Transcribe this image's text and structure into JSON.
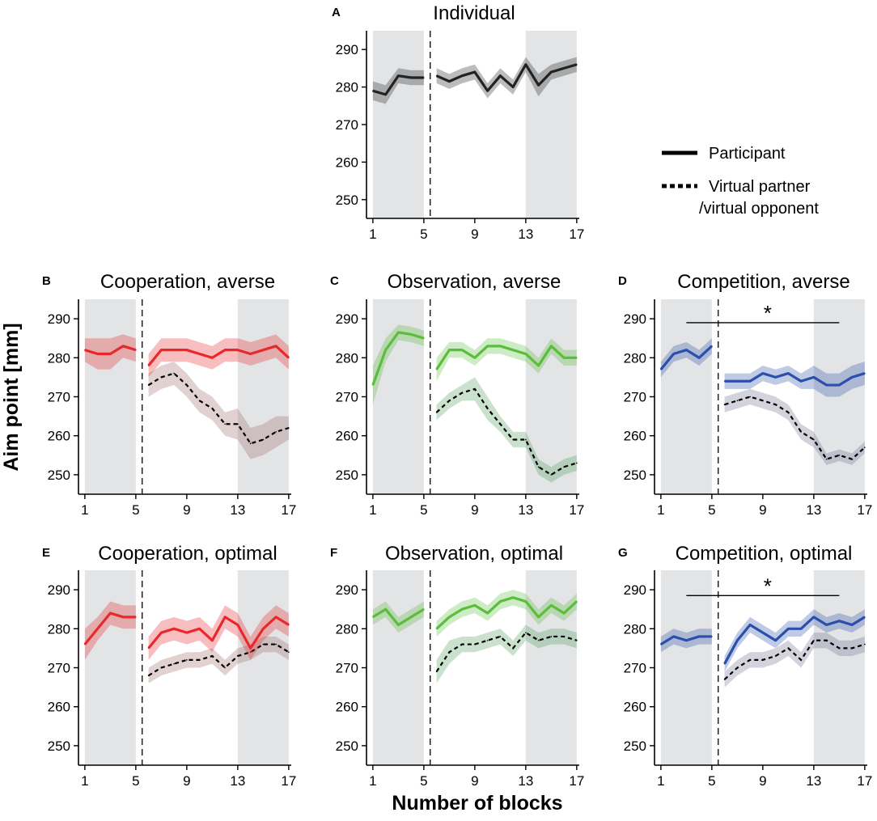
{
  "figure": {
    "y_axis_label": "Aim point [mm]",
    "x_axis_label": "Number of blocks",
    "legend": {
      "participant": "Participant",
      "partner_line1": "Virtual partner",
      "partner_line2": "/virtual opponent"
    }
  },
  "chart_data": [
    {
      "id": "A",
      "letter": "A",
      "title": "Individual",
      "type": "line",
      "color": "#222222",
      "xlim": [
        0.5,
        17.2
      ],
      "ylim": [
        245,
        295
      ],
      "xticks": [
        1,
        5,
        9,
        13,
        17
      ],
      "yticks": [
        250,
        260,
        270,
        280,
        290
      ],
      "shaded_blocks": [
        [
          1,
          5
        ],
        [
          13,
          17
        ]
      ],
      "divider_x": 5.5,
      "participant": {
        "x": [
          1,
          2,
          3,
          4,
          5,
          6,
          7,
          8,
          9,
          10,
          11,
          12,
          13,
          14,
          15,
          16,
          17
        ],
        "y": [
          279,
          278,
          283,
          282.5,
          282.5,
          283,
          281.5,
          283,
          284,
          279,
          283,
          280,
          286,
          280.5,
          284,
          285,
          286
        ],
        "err": [
          2.5,
          2.5,
          2,
          2,
          2,
          2,
          2,
          2,
          2,
          2,
          2,
          2,
          2,
          3,
          2,
          2,
          2
        ]
      },
      "significance": null
    },
    {
      "id": "B",
      "letter": "B",
      "title": "Cooperation, averse",
      "type": "line",
      "color": "#e8282a",
      "partner_color": "#9a6666",
      "xlim": [
        0.5,
        17.2
      ],
      "ylim": [
        245,
        295
      ],
      "xticks": [
        1,
        5,
        9,
        13,
        17
      ],
      "yticks": [
        250,
        260,
        270,
        280,
        290
      ],
      "shaded_blocks": [
        [
          1,
          5
        ],
        [
          13,
          17
        ]
      ],
      "divider_x": 5.5,
      "participant": {
        "x": [
          1,
          2,
          3,
          4,
          5,
          6,
          7,
          8,
          9,
          10,
          11,
          12,
          13,
          14,
          15,
          16,
          17
        ],
        "y": [
          282,
          281,
          281,
          283,
          282,
          278,
          282,
          282,
          282,
          281,
          280,
          282,
          282,
          281,
          282,
          283,
          280
        ],
        "err": [
          3,
          4,
          4,
          3,
          3,
          3,
          3,
          3,
          3,
          3,
          3,
          3,
          3,
          3,
          3,
          3,
          3
        ]
      },
      "partner": {
        "x": [
          6,
          7,
          8,
          9,
          10,
          11,
          12,
          13,
          14,
          15,
          16,
          17
        ],
        "y": [
          273,
          275,
          276,
          273,
          269,
          267,
          263,
          263,
          258,
          259,
          261,
          262
        ],
        "err": [
          3,
          3,
          3,
          3,
          3,
          3,
          3,
          4,
          4,
          4,
          4,
          3
        ]
      },
      "significance": null
    },
    {
      "id": "C",
      "letter": "C",
      "title": "Observation, averse",
      "type": "line",
      "color": "#5bbd3c",
      "partner_color": "#4d9a5a",
      "xlim": [
        0.5,
        17.2
      ],
      "ylim": [
        245,
        295
      ],
      "xticks": [
        1,
        5,
        9,
        13,
        17
      ],
      "yticks": [
        250,
        260,
        270,
        280,
        290
      ],
      "shaded_blocks": [
        [
          1,
          5
        ],
        [
          13,
          17
        ]
      ],
      "divider_x": 5.5,
      "participant": {
        "x": [
          1,
          2,
          3,
          4,
          5,
          6,
          7,
          8,
          9,
          10,
          11,
          12,
          13,
          14,
          15,
          16,
          17
        ],
        "y": [
          273,
          282,
          286.5,
          286,
          285,
          277,
          282,
          282,
          280,
          283,
          283,
          282,
          281,
          278,
          283,
          280,
          280
        ],
        "err": [
          5,
          3,
          2,
          2,
          2,
          3,
          2,
          2,
          2,
          2,
          2,
          2,
          2,
          2,
          2,
          2,
          2
        ]
      },
      "partner": {
        "x": [
          6,
          7,
          8,
          9,
          10,
          11,
          12,
          13,
          14,
          15,
          16,
          17
        ],
        "y": [
          266,
          269,
          271,
          272,
          267,
          263,
          259,
          259,
          252,
          250,
          252,
          253
        ],
        "err": [
          2,
          2,
          2,
          3,
          3,
          2,
          2,
          2,
          2,
          2,
          2,
          2
        ]
      },
      "significance": null
    },
    {
      "id": "D",
      "letter": "D",
      "title": "Competition, averse",
      "type": "line",
      "color": "#2b4faa",
      "partner_color": "#6e6e90",
      "xlim": [
        0.5,
        17.2
      ],
      "ylim": [
        245,
        295
      ],
      "xticks": [
        1,
        5,
        9,
        13,
        17
      ],
      "yticks": [
        250,
        260,
        270,
        280,
        290
      ],
      "shaded_blocks": [
        [
          1,
          5
        ],
        [
          13,
          17
        ]
      ],
      "divider_x": 5.5,
      "participant": {
        "x": [
          1,
          2,
          3,
          4,
          5,
          6,
          7,
          8,
          9,
          10,
          11,
          12,
          13,
          14,
          15,
          16,
          17
        ],
        "y": [
          277,
          281,
          282,
          280,
          283,
          274,
          274,
          274,
          276,
          275,
          276,
          274,
          275,
          273,
          273,
          275,
          276
        ],
        "err": [
          2,
          2,
          2,
          2,
          2,
          2,
          2,
          2,
          2,
          2,
          2,
          2,
          3,
          3,
          3,
          3,
          3
        ]
      },
      "partner": {
        "x": [
          6,
          7,
          8,
          9,
          10,
          11,
          12,
          13,
          14,
          15,
          16,
          17
        ],
        "y": [
          268,
          269,
          270,
          269,
          268,
          266,
          261,
          259,
          254,
          255,
          254,
          257
        ],
        "err": [
          2,
          2,
          2,
          2,
          2,
          2,
          2,
          2,
          1.5,
          1.5,
          1.5,
          1.5
        ]
      },
      "significance": {
        "label": "*",
        "x_range": [
          3,
          15
        ],
        "y": 289
      }
    },
    {
      "id": "E",
      "letter": "E",
      "title": "Cooperation, optimal",
      "type": "line",
      "color": "#e8282a",
      "partner_color": "#9a6666",
      "xlim": [
        0.5,
        17.2
      ],
      "ylim": [
        245,
        295
      ],
      "xticks": [
        1,
        5,
        9,
        13,
        17
      ],
      "yticks": [
        250,
        260,
        270,
        280,
        290
      ],
      "shaded_blocks": [
        [
          1,
          5
        ],
        [
          13,
          17
        ]
      ],
      "divider_x": 5.5,
      "participant": {
        "x": [
          1,
          2,
          3,
          4,
          5,
          6,
          7,
          8,
          9,
          10,
          11,
          12,
          13,
          14,
          15,
          16,
          17
        ],
        "y": [
          276,
          280,
          284,
          283,
          283,
          275,
          279,
          280,
          279,
          280,
          277,
          283,
          281,
          275,
          280,
          283,
          281
        ],
        "err": [
          4,
          3,
          3,
          3,
          3,
          3,
          3,
          3,
          3,
          3,
          3,
          3,
          3,
          3,
          3,
          3,
          3
        ]
      },
      "partner": {
        "x": [
          6,
          7,
          8,
          9,
          10,
          11,
          12,
          13,
          14,
          15,
          16,
          17
        ],
        "y": [
          268,
          270,
          271,
          272,
          272,
          273,
          270,
          273,
          274,
          276,
          276,
          274
        ],
        "err": [
          2,
          2,
          2,
          2,
          2,
          2,
          2,
          2,
          2,
          2,
          2,
          2
        ]
      },
      "significance": null
    },
    {
      "id": "F",
      "letter": "F",
      "title": "Observation, optimal",
      "type": "line",
      "color": "#5bbd3c",
      "partner_color": "#4d9a5a",
      "xlim": [
        0.5,
        17.2
      ],
      "ylim": [
        245,
        295
      ],
      "xticks": [
        1,
        5,
        9,
        13,
        17
      ],
      "yticks": [
        250,
        260,
        270,
        280,
        290
      ],
      "shaded_blocks": [
        [
          1,
          5
        ],
        [
          13,
          17
        ]
      ],
      "divider_x": 5.5,
      "participant": {
        "x": [
          1,
          2,
          3,
          4,
          5,
          6,
          7,
          8,
          9,
          10,
          11,
          12,
          13,
          14,
          15,
          16,
          17
        ],
        "y": [
          283,
          285,
          281,
          283,
          285,
          280,
          283,
          285,
          286,
          284,
          287,
          288,
          287,
          283,
          286,
          284,
          287
        ],
        "err": [
          2,
          2,
          2,
          2,
          2,
          2,
          2,
          2,
          2,
          2,
          2,
          2,
          2,
          2,
          2,
          2,
          2
        ]
      },
      "partner": {
        "x": [
          6,
          7,
          8,
          9,
          10,
          11,
          12,
          13,
          14,
          15,
          16,
          17
        ],
        "y": [
          269,
          274,
          276,
          276,
          277,
          278,
          275,
          279,
          277,
          278,
          278,
          277
        ],
        "err": [
          3,
          3,
          2,
          2,
          2,
          2,
          2,
          2,
          2,
          2,
          2,
          2
        ]
      },
      "significance": null
    },
    {
      "id": "G",
      "letter": "G",
      "title": "Competition, optimal",
      "type": "line",
      "color": "#2b4faa",
      "partner_color": "#6e6e90",
      "xlim": [
        0.5,
        17.2
      ],
      "ylim": [
        245,
        295
      ],
      "xticks": [
        1,
        5,
        9,
        13,
        17
      ],
      "yticks": [
        250,
        260,
        270,
        280,
        290
      ],
      "shaded_blocks": [
        [
          1,
          5
        ],
        [
          13,
          17
        ]
      ],
      "divider_x": 5.5,
      "participant": {
        "x": [
          1,
          2,
          3,
          4,
          5,
          6,
          7,
          8,
          9,
          10,
          11,
          12,
          13,
          14,
          15,
          16,
          17
        ],
        "y": [
          276,
          278,
          277,
          278,
          278,
          271,
          277,
          281,
          279,
          277,
          280,
          280,
          283,
          281,
          282,
          281,
          283
        ],
        "err": [
          2,
          2,
          2,
          2,
          2,
          2,
          2,
          2,
          2,
          2,
          2,
          2,
          2,
          2,
          2,
          2,
          2
        ]
      },
      "partner": {
        "x": [
          6,
          7,
          8,
          9,
          10,
          11,
          12,
          13,
          14,
          15,
          16,
          17
        ],
        "y": [
          267,
          270,
          272,
          272,
          273,
          275,
          272,
          277,
          277,
          275,
          275,
          276
        ],
        "err": [
          2,
          2,
          2,
          2,
          2,
          2,
          2,
          2,
          2,
          2,
          2,
          2
        ]
      },
      "significance": {
        "label": "*",
        "x_range": [
          3,
          15
        ],
        "y": 288.5
      }
    }
  ]
}
